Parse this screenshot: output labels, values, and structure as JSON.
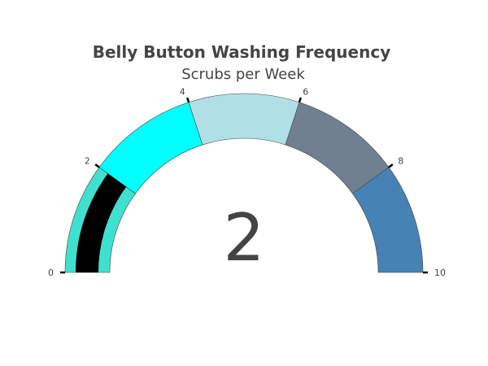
{
  "chart_data": {
    "type": "gauge",
    "title": "Belly Button Washing Frequency",
    "subtitle": "Scrubs per Week",
    "value": 2,
    "value_label": "2",
    "range": [
      0,
      10
    ],
    "ticks": [
      0,
      2,
      4,
      6,
      8,
      10
    ],
    "tick_labels": [
      "0",
      "2",
      "4",
      "6",
      "8",
      "10"
    ],
    "bar_color": "#000000",
    "steps": [
      {
        "range": [
          0,
          2
        ],
        "color": "#40E0D0"
      },
      {
        "range": [
          2,
          4
        ],
        "color": "#00FFFF"
      },
      {
        "range": [
          4,
          6
        ],
        "color": "#B0E0E6"
      },
      {
        "range": [
          6,
          8
        ],
        "color": "#708090"
      },
      {
        "range": [
          8,
          10
        ],
        "color": "#4682B4"
      }
    ]
  }
}
